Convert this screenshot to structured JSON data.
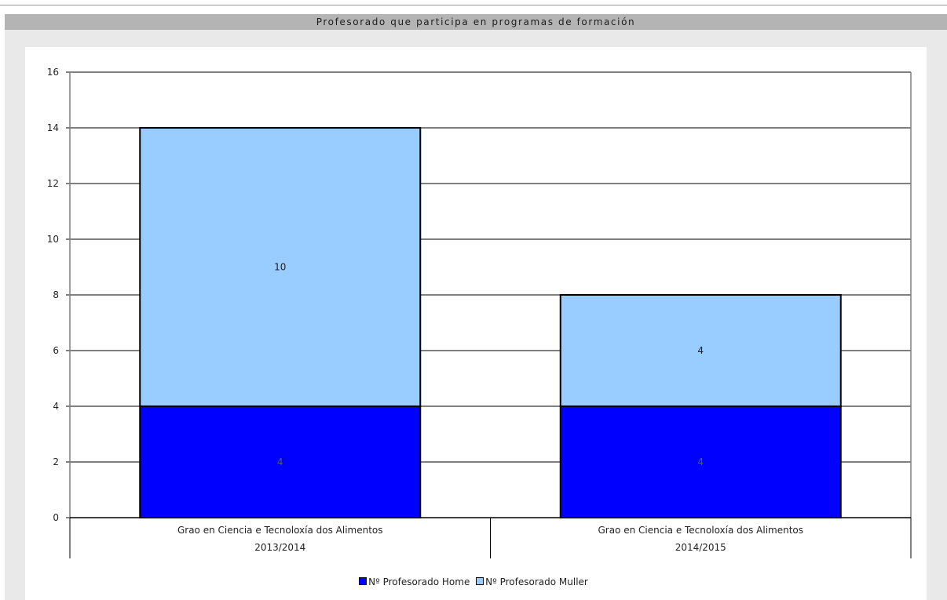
{
  "chart_data": {
    "type": "bar",
    "stacked": true,
    "title": "Profesorado que participa en programas de formación",
    "categories": [
      [
        "Grao en Ciencia e Tecnoloxía dos Alimentos",
        "2013/2014"
      ],
      [
        "Grao en Ciencia e Tecnoloxía dos Alimentos",
        "2014/2015"
      ]
    ],
    "series": [
      {
        "name": "Nº Profesorado Home",
        "values": [
          4,
          4
        ],
        "color": "#0000ff"
      },
      {
        "name": "Nº Profesorado Muller",
        "values": [
          10,
          4
        ],
        "color": "#99ccff"
      }
    ],
    "ylim": [
      0,
      16
    ],
    "yticks": [
      0,
      2,
      4,
      6,
      8,
      10,
      12,
      14,
      16
    ],
    "grid": true,
    "legend_position": "bottom",
    "data_labels": true
  }
}
